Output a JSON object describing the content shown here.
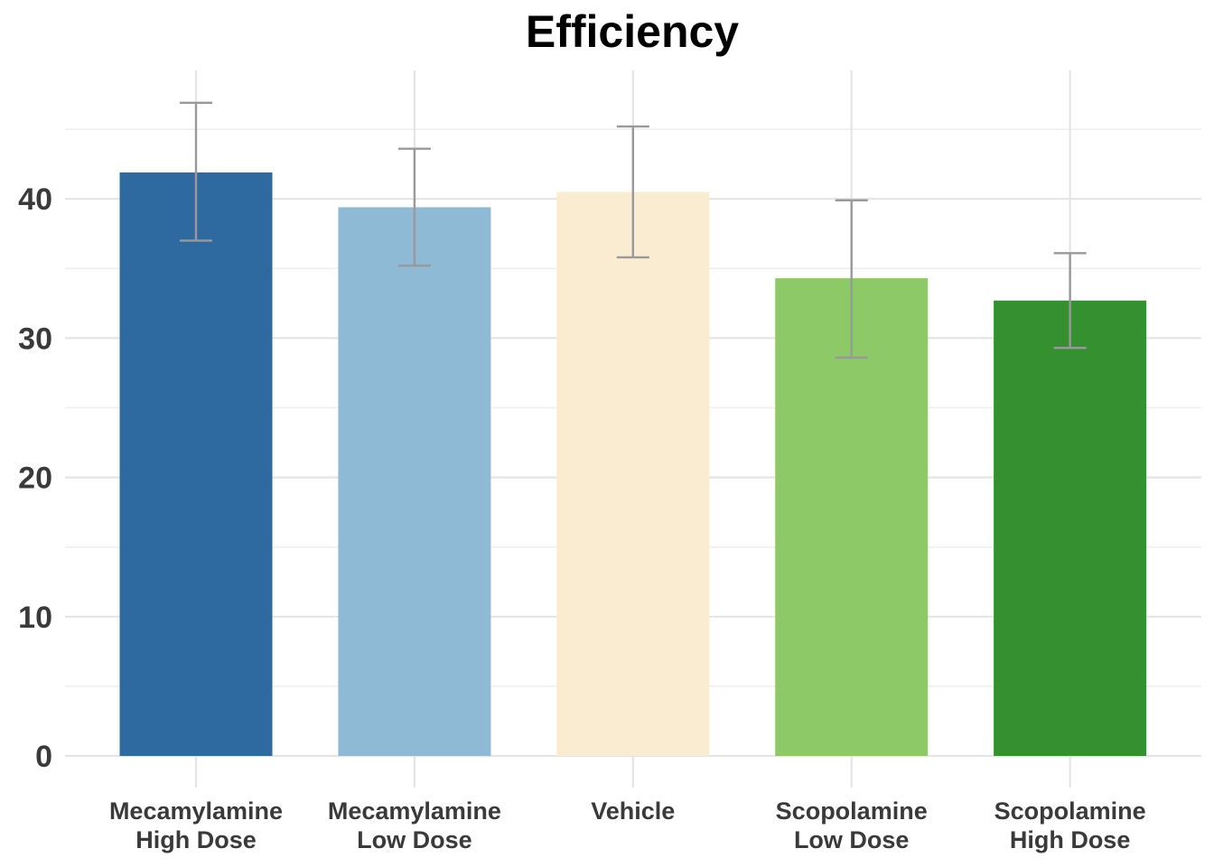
{
  "chart_data": {
    "type": "bar",
    "title": "Efficiency",
    "xlabel": "",
    "ylabel": "",
    "ylim": [
      0,
      49
    ],
    "yticks": [
      0,
      10,
      20,
      30,
      40
    ],
    "grid": true,
    "legend": "none",
    "categories": [
      [
        "Mecamylamine",
        "High Dose"
      ],
      [
        "Mecamylamine",
        "Low Dose"
      ],
      [
        "Vehicle"
      ],
      [
        "Scopolamine",
        "Low Dose"
      ],
      [
        "Scopolamine",
        "High Dose"
      ]
    ],
    "values": [
      41.9,
      39.4,
      40.5,
      34.3,
      32.7
    ],
    "error_low": [
      37.0,
      35.2,
      35.8,
      28.6,
      29.3
    ],
    "error_high": [
      46.9,
      43.6,
      45.2,
      39.9,
      36.1
    ],
    "colors": [
      "#2e6a9f",
      "#8fbad6",
      "#faecd1",
      "#8ec968",
      "#35912f"
    ],
    "error_color": "#999999"
  }
}
